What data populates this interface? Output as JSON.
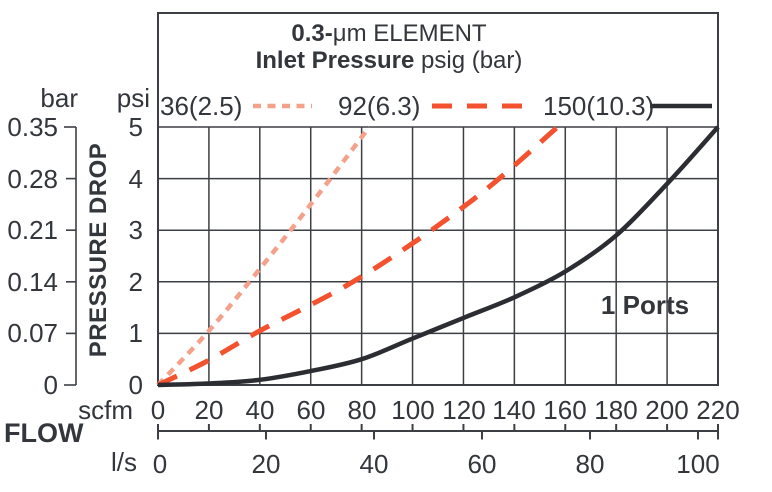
{
  "colors": {
    "ink": "#3c3f44",
    "text": "#33363b",
    "series_pink": "#f4a18c",
    "series_red": "#f4512e",
    "series_black": "#2b2d32",
    "background": "#ffffff"
  },
  "title": {
    "line1_bold": "0.3-",
    "line1_rest": "μm ELEMENT",
    "line2_bold": "Inlet Pressure",
    "line2_rest": " psig (bar)"
  },
  "annotation": "1 Ports",
  "axes": {
    "left_outer_unit": "bar",
    "left_inner_unit": "psi",
    "left_axis_title": "PRESSURE DROP",
    "bottom_inner_unit": "scfm",
    "bottom_outer_unit": "l/s",
    "bottom_axis_title": "FLOW",
    "bar_ticks": [
      "0.35",
      "0.28",
      "0.21",
      "0.14",
      "0.07",
      "0"
    ],
    "psi_ticks": [
      "5",
      "4",
      "3",
      "2",
      "1",
      "0"
    ],
    "scfm_ticks": [
      "0",
      "20",
      "40",
      "60",
      "80",
      "100",
      "120",
      "140",
      "160",
      "180",
      "200",
      "220"
    ],
    "ls_ticks": [
      "0",
      "20",
      "40",
      "60",
      "80",
      "100"
    ]
  },
  "chart_data": {
    "type": "line",
    "title": "0.3-μm ELEMENT",
    "subtitle": "Inlet Pressure psig (bar)",
    "xlabel": "FLOW",
    "ylabel": "PRESSURE DROP",
    "x_units": [
      "scfm",
      "l/s"
    ],
    "y_units": [
      "psi",
      "bar"
    ],
    "x_range_scfm": [
      0,
      220
    ],
    "x_range_ls": [
      0,
      104
    ],
    "ylim_psi": [
      0,
      5
    ],
    "ylim_bar": [
      0,
      0.35
    ],
    "grid": true,
    "legend_position": "top",
    "annotation": "1 Ports",
    "series": [
      {
        "name": "36(2.5)",
        "inlet_pressure_psig": 36,
        "inlet_pressure_bar": 2.5,
        "style": "dotted",
        "color": "#f4a18c",
        "points_scfm_psi": [
          [
            0,
            0
          ],
          [
            20,
            1.05
          ],
          [
            40,
            2.25
          ],
          [
            60,
            3.5
          ],
          [
            83,
            5
          ]
        ]
      },
      {
        "name": "92(6.3)",
        "inlet_pressure_psig": 92,
        "inlet_pressure_bar": 6.3,
        "style": "dashed",
        "color": "#f4512e",
        "points_scfm_psi": [
          [
            0,
            0
          ],
          [
            20,
            0.48
          ],
          [
            40,
            1.05
          ],
          [
            80,
            2.1
          ],
          [
            124,
            3.6
          ],
          [
            157,
            5
          ]
        ]
      },
      {
        "name": "150(10.3)",
        "inlet_pressure_psig": 150,
        "inlet_pressure_bar": 10.3,
        "style": "solid",
        "color": "#2b2d32",
        "points_scfm_psi": [
          [
            0,
            0
          ],
          [
            20,
            0.03
          ],
          [
            40,
            0.1
          ],
          [
            60,
            0.27
          ],
          [
            80,
            0.5
          ],
          [
            100,
            0.9
          ],
          [
            120,
            1.3
          ],
          [
            140,
            1.7
          ],
          [
            160,
            2.2
          ],
          [
            180,
            2.9
          ],
          [
            200,
            3.9
          ],
          [
            220,
            5
          ]
        ]
      }
    ]
  }
}
